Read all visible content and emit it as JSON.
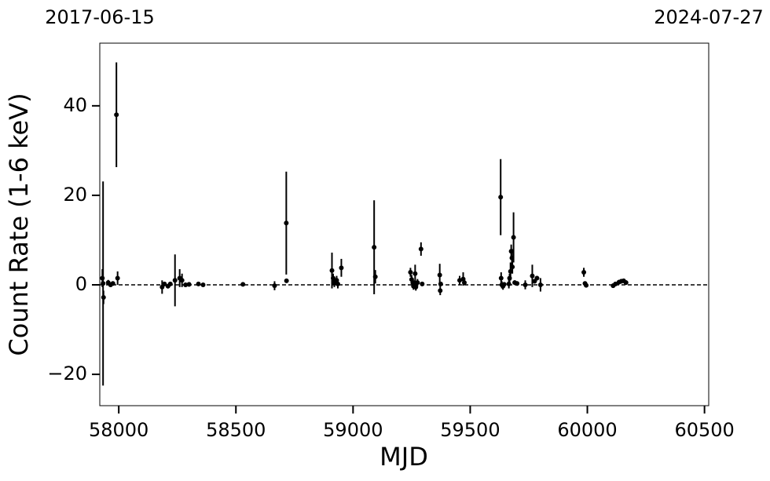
{
  "chart_data": {
    "type": "errorbar-scatter",
    "xlabel": "MJD",
    "ylabel": "Count Rate (1-6 keV)",
    "xlim": [
      57919,
      60518
    ],
    "ylim": [
      -27,
      54
    ],
    "xticks": [
      58000,
      58500,
      59000,
      59500,
      60000,
      60500
    ],
    "yticks": [
      {
        "value": -20,
        "label": "−20"
      },
      0,
      20,
      40
    ],
    "x2ticks": [
      {
        "value": 57919,
        "label": "2017-06-15"
      },
      {
        "value": 60518,
        "label": "2024-07-27"
      }
    ],
    "hline": 0,
    "color": "#000000",
    "x": [
      57930,
      57933,
      57935,
      57955,
      57965,
      57975,
      57990,
      57995,
      58185,
      58195,
      58210,
      58220,
      58240,
      58260,
      58270,
      58285,
      58300,
      58340,
      58360,
      58530,
      58665,
      58715,
      58716,
      58910,
      58915,
      58920,
      58930,
      58935,
      58950,
      59090,
      59095,
      59245,
      59250,
      59255,
      59258,
      59262,
      59265,
      59268,
      59275,
      59290,
      59295,
      59370,
      59372,
      59374,
      59455,
      59470,
      59475,
      59630,
      59632,
      59635,
      59640,
      59645,
      59665,
      59668,
      59672,
      59675,
      59678,
      59680,
      59685,
      59690,
      59700,
      59735,
      59765,
      59775,
      59785,
      59800,
      59985,
      59990,
      59995,
      60110,
      60120,
      60135,
      60145,
      60155,
      60165
    ],
    "values": [
      1.5,
      0.3,
      -2.8,
      0.5,
      0.0,
      0.3,
      38,
      1.5,
      -0.5,
      0.2,
      -0.3,
      0.2,
      1.0,
      1.5,
      1.0,
      0.0,
      0.1,
      0.2,
      0.0,
      0.1,
      -0.2,
      13.8,
      0.9,
      3.2,
      1.5,
      0.5,
      1.0,
      0.2,
      3.8,
      8.4,
      1.8,
      2.8,
      1.2,
      0.5,
      -0.3,
      0.2,
      2.5,
      -0.5,
      0.5,
      8.0,
      0.2,
      2.2,
      -1.3,
      0.2,
      1.0,
      1.3,
      0.5,
      19.6,
      1.5,
      0.0,
      -0.3,
      0.1,
      0.2,
      1.5,
      3.0,
      7.5,
      6.0,
      4.0,
      10.6,
      0.5,
      0.3,
      0.0,
      2.0,
      0.8,
      1.5,
      0.0,
      2.8,
      0.3,
      -0.1,
      -0.2,
      0.2,
      0.6,
      0.8,
      0.9,
      0.5
    ],
    "errors": [
      2.0,
      22.8,
      1.5,
      0.6,
      0.5,
      0.5,
      11.7,
      1.5,
      1.5,
      0.5,
      0.5,
      0.5,
      5.8,
      2.0,
      1.5,
      0.5,
      0.5,
      0.4,
      0.4,
      0.4,
      1.0,
      11.5,
      0.4,
      4.0,
      1.0,
      1.0,
      1.0,
      1.0,
      2.0,
      10.5,
      1.5,
      1.0,
      1.0,
      1.0,
      0.8,
      0.8,
      2.0,
      0.8,
      0.8,
      1.5,
      0.5,
      2.5,
      1.0,
      0.5,
      1.0,
      1.5,
      0.5,
      8.5,
      1.3,
      0.8,
      0.8,
      0.5,
      1.0,
      1.0,
      2.0,
      1.5,
      2.0,
      1.5,
      5.6,
      0.5,
      0.5,
      1.0,
      2.5,
      0.5,
      0.5,
      1.5,
      1.0,
      0.5,
      0.5,
      0.5,
      0.5,
      0.5,
      0.5,
      0.5,
      0.5
    ]
  }
}
